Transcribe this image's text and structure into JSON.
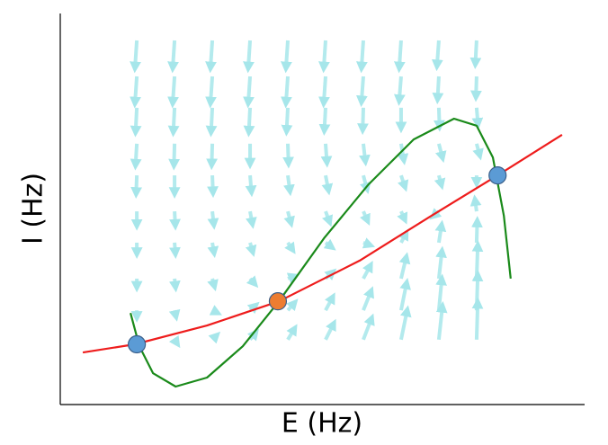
{
  "chart_data": {
    "type": "phase-plane",
    "xlabel": "E (Hz)",
    "ylabel": "I (Hz)",
    "xlim": [
      0,
      100
    ],
    "ylim": [
      0,
      100
    ],
    "series": [
      {
        "type": "line",
        "color": "#ee1c1c",
        "x": [
          4.3,
          14.2,
          28.0,
          41.7,
          57.1,
          70.8,
          83.4,
          95.7
        ],
        "values": [
          13.3,
          15.4,
          20.2,
          26.4,
          36.8,
          48.3,
          58.6,
          69.0
        ]
      },
      {
        "type": "line",
        "color": "#1a8a1a",
        "x": [
          13.4,
          15.1,
          17.7,
          22.0,
          28.0,
          34.8,
          41.7,
          50.3,
          58.8,
          67.4,
          75.1,
          79.4,
          82.5,
          84.6,
          85.9
        ],
        "values": [
          23.4,
          14.9,
          8.0,
          4.6,
          6.9,
          14.9,
          26.4,
          42.5,
          56.3,
          67.8,
          73.1,
          71.3,
          63.2,
          48.3,
          32.2
        ]
      },
      {
        "type": "scatter",
        "colors": [
          "#5b9bd5",
          "#ed7d31",
          "#5b9bd5"
        ],
        "x": [
          14.6,
          41.5,
          83.4
        ],
        "values": [
          15.4,
          26.4,
          58.6
        ]
      }
    ],
    "quiver": {
      "color": "#a6e6ea",
      "x": [
        14.6,
        21.8,
        29.0,
        36.2,
        43.4,
        50.6,
        57.8,
        65.0,
        72.2,
        79.4
      ],
      "y": [
        93.1,
        83.9,
        75.9,
        66.7,
        58.6,
        49.4,
        41.4,
        32.2,
        24.1,
        16.6
      ],
      "u": [
        [
          -0.3,
          -0.3,
          -0.3,
          -0.3,
          -0.3,
          -0.3,
          -0.3,
          -0.3,
          -0.3,
          -0.2
        ],
        [
          -0.3,
          -0.3,
          -0.3,
          -0.3,
          -0.3,
          -0.3,
          -0.3,
          -0.3,
          -0.2,
          -0.1
        ],
        [
          -0.2,
          -0.2,
          -0.2,
          -0.2,
          -0.2,
          -0.2,
          -0.1,
          0.0,
          0.1,
          0.2
        ],
        [
          -0.2,
          -0.1,
          -0.1,
          0.0,
          0.1,
          0.2,
          0.3,
          0.4,
          0.5,
          0.4
        ],
        [
          -0.1,
          0.0,
          0.1,
          0.2,
          0.3,
          0.4,
          0.5,
          0.5,
          0.3,
          0.0
        ],
        [
          0.0,
          0.1,
          0.2,
          0.3,
          0.4,
          0.5,
          0.5,
          0.4,
          -0.5,
          -0.2
        ],
        [
          0.0,
          0.1,
          0.2,
          0.3,
          0.5,
          0.6,
          0.6,
          0.6,
          0.4,
          0.1
        ],
        [
          0.0,
          0.1,
          0.2,
          0.4,
          0.6,
          0.8,
          1.0,
          0.8,
          0.5,
          0.2
        ],
        [
          0.0,
          0.1,
          0.3,
          0.5,
          0.8,
          1.0,
          1.2,
          0.9,
          0.5,
          0.2
        ],
        [
          0.0,
          0.1,
          0.3,
          0.6,
          0.9,
          1.2,
          1.3,
          1.0,
          0.6,
          0.2
        ]
      ],
      "v": [
        [
          -6.0,
          -6.0,
          -6.0,
          -6.0,
          -6.0,
          -6.0,
          -6.0,
          -6.0,
          -5.5,
          -5.0
        ],
        [
          -5.8,
          -5.8,
          -5.8,
          -5.8,
          -5.8,
          -5.8,
          -5.5,
          -5.2,
          -4.8,
          -4.2
        ],
        [
          -5.2,
          -5.2,
          -5.2,
          -5.2,
          -5.0,
          -4.8,
          -4.6,
          -4.2,
          -3.8,
          -3.2
        ],
        [
          -4.5,
          -4.5,
          -4.4,
          -4.2,
          -4.0,
          -3.8,
          -3.5,
          -3.2,
          -2.6,
          -2.0
        ],
        [
          -3.6,
          -3.6,
          -3.4,
          -3.2,
          -3.0,
          -2.8,
          -2.5,
          -2.0,
          -1.5,
          -1.0
        ],
        [
          -2.6,
          -2.6,
          -2.4,
          -2.2,
          -2.0,
          -1.8,
          -1.5,
          -1.2,
          -0.6,
          2.0
        ],
        [
          -1.8,
          -1.8,
          -1.6,
          -1.4,
          -1.0,
          -0.6,
          -0.3,
          1.5,
          3.5,
          4.5
        ],
        [
          -1.2,
          -1.2,
          -1.0,
          -0.6,
          0.3,
          1.0,
          2.5,
          4.5,
          6.0,
          7.5
        ],
        [
          -0.8,
          -0.6,
          -0.2,
          0.6,
          1.2,
          2.5,
          4.0,
          6.0,
          7.0,
          8.0
        ],
        [
          -0.4,
          -0.2,
          0.4,
          1.0,
          2.0,
          3.2,
          4.5,
          6.5,
          7.5,
          8.5
        ]
      ]
    }
  }
}
